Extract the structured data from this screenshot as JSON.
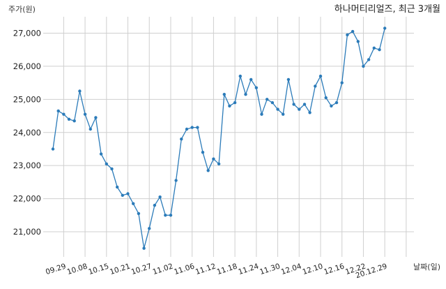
{
  "chart_data": {
    "type": "line",
    "title": "하나머티리얼즈, 최근 3개월",
    "ylabel": "주가(원)",
    "xlabel": "날짜(일)",
    "ylim": [
      20200,
      27500
    ],
    "yticks": [
      21000,
      22000,
      23000,
      24000,
      25000,
      26000,
      27000
    ],
    "ytick_labels": [
      "21,000",
      "22,000",
      "23,000",
      "24,000",
      "25,000",
      "26,000",
      "27,000"
    ],
    "xtick_positions": [
      2,
      6,
      10,
      14,
      18,
      22,
      26,
      30,
      34,
      38,
      42,
      46,
      50,
      54,
      58,
      62,
      66
    ],
    "xtick_labels": [
      "09.29",
      "10.08",
      "10.15",
      "10.21",
      "10.27",
      "11.02",
      "11.06",
      "11.12",
      "11.18",
      "11.24",
      "11.30",
      "12.04",
      "12.10",
      "12.16",
      "12.22",
      "20.12.29",
      ""
    ],
    "grid": true,
    "line_color": "#2b7bb9",
    "series": [
      {
        "values": [
          23500,
          24650,
          24550,
          24400,
          24350,
          25250,
          24550,
          24100,
          24450,
          23350,
          23050,
          22900,
          22350,
          22100,
          22150,
          21850,
          21550,
          20500,
          21100,
          21800,
          22050,
          21500,
          21500,
          22550,
          23800,
          24100,
          24150,
          24150,
          23400,
          22850,
          23200,
          23050,
          25150,
          24800,
          24900,
          25700,
          25150,
          25600,
          25350,
          24550,
          25000,
          24900,
          24700,
          24550,
          25600,
          24850,
          24700,
          24850,
          24600,
          25400,
          25700,
          25050,
          24800,
          24900,
          25500,
          26950,
          27050,
          26750,
          26000,
          26200,
          26550,
          26500,
          27150
        ]
      }
    ]
  }
}
